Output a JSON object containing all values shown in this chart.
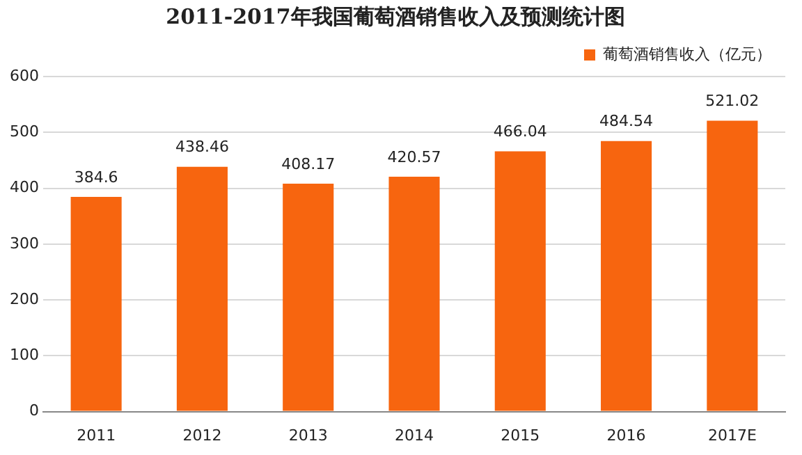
{
  "chart_data": {
    "type": "bar",
    "title": "2011-2017年我国葡萄酒销售收入及预测统计图",
    "categories": [
      "2011",
      "2012",
      "2013",
      "2014",
      "2015",
      "2016",
      "2017E"
    ],
    "series": [
      {
        "name": "葡萄酒销售收入（亿元）",
        "color": "#f7650f",
        "values": [
          384.6,
          438.46,
          408.17,
          420.57,
          466.04,
          484.54,
          521.02
        ]
      }
    ],
    "ylim": [
      0,
      600
    ],
    "yticks": [
      0,
      100,
      200,
      300,
      400,
      500,
      600
    ],
    "grid": "y",
    "legend": "top right",
    "data_labels": true
  }
}
